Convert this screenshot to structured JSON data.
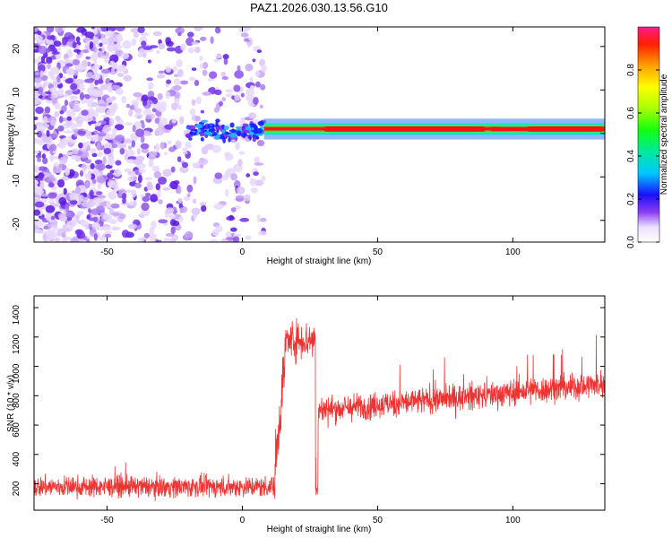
{
  "title": "PAZ1.2026.030.13.56.G10",
  "chart_data": [
    {
      "type": "heatmap",
      "name": "spectrogram",
      "xlabel": "Height of straight line (km)",
      "ylabel": "Frequency (Hz)",
      "xlim": [
        -77,
        134
      ],
      "ylim": [
        -25,
        24.5
      ],
      "xticks": [
        -50,
        0,
        50,
        100
      ],
      "yticks": [
        -20,
        -10,
        0,
        10,
        20
      ],
      "colorbar": {
        "label": "Normalized spectral amplitude",
        "range": [
          0,
          1
        ],
        "ticks": [
          "0.0",
          "0.2",
          "0.4",
          "0.6",
          "0.8"
        ],
        "tick_values": [
          0,
          0.2,
          0.4,
          0.6,
          0.8
        ]
      },
      "features": {
        "noise_region_x": [
          -77,
          8
        ],
        "signal_band_center_hz": 1,
        "signal_band_x": [
          8,
          134
        ],
        "peak_segments": [
          {
            "x": [
              30,
              90
            ],
            "amplitude": 0.95
          },
          {
            "x": [
              105,
              134
            ],
            "amplitude": 0.9
          }
        ]
      }
    },
    {
      "type": "line",
      "name": "snr",
      "xlabel": "Height of straight line (km)",
      "ylabel": "SNR (10 * v/v)",
      "xlim": [
        -77,
        134
      ],
      "ylim": [
        20,
        1480
      ],
      "xticks": [
        -50,
        0,
        50,
        100
      ],
      "yticks": [
        200,
        400,
        600,
        800,
        1000,
        1200,
        1400
      ],
      "color": "#ee3333",
      "segments": [
        {
          "x": [
            -77,
            12
          ],
          "mean": 180,
          "spread": 70
        },
        {
          "x": [
            12,
            16
          ],
          "mean": 700,
          "spread": 200
        },
        {
          "x": [
            16,
            27
          ],
          "mean": 1180,
          "spread": 130
        },
        {
          "x": [
            28,
            134
          ],
          "mean_start": 700,
          "mean_end": 880,
          "spread": 90
        }
      ]
    }
  ]
}
